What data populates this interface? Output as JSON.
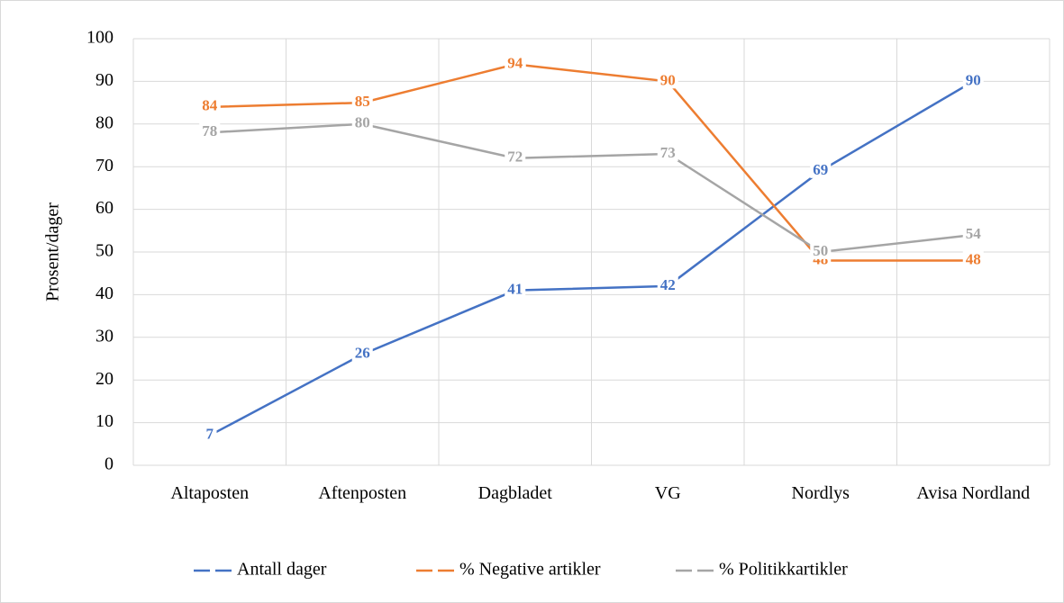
{
  "chart_data": {
    "type": "line",
    "y_label": "Prosent/dager",
    "categories": [
      "Altaposten",
      "Aftenposten",
      "Dagbladet",
      "VG",
      "Nordlys",
      "Avisa Nordland"
    ],
    "series": [
      {
        "name": "Antall dager",
        "color": "#4472c4",
        "values": [
          7,
          26,
          41,
          42,
          69,
          90
        ]
      },
      {
        "name": "% Negative artikler",
        "color": "#ed7d31",
        "values": [
          84,
          85,
          94,
          90,
          48,
          48
        ]
      },
      {
        "name": "% Politikkartikler",
        "color": "#a5a5a5",
        "values": [
          78,
          80,
          72,
          73,
          50,
          54
        ]
      }
    ],
    "ylim": [
      0,
      100
    ],
    "yticks": [
      0,
      10,
      20,
      30,
      40,
      50,
      60,
      70,
      80,
      90,
      100
    ],
    "grid": true,
    "legend": "bottom"
  }
}
